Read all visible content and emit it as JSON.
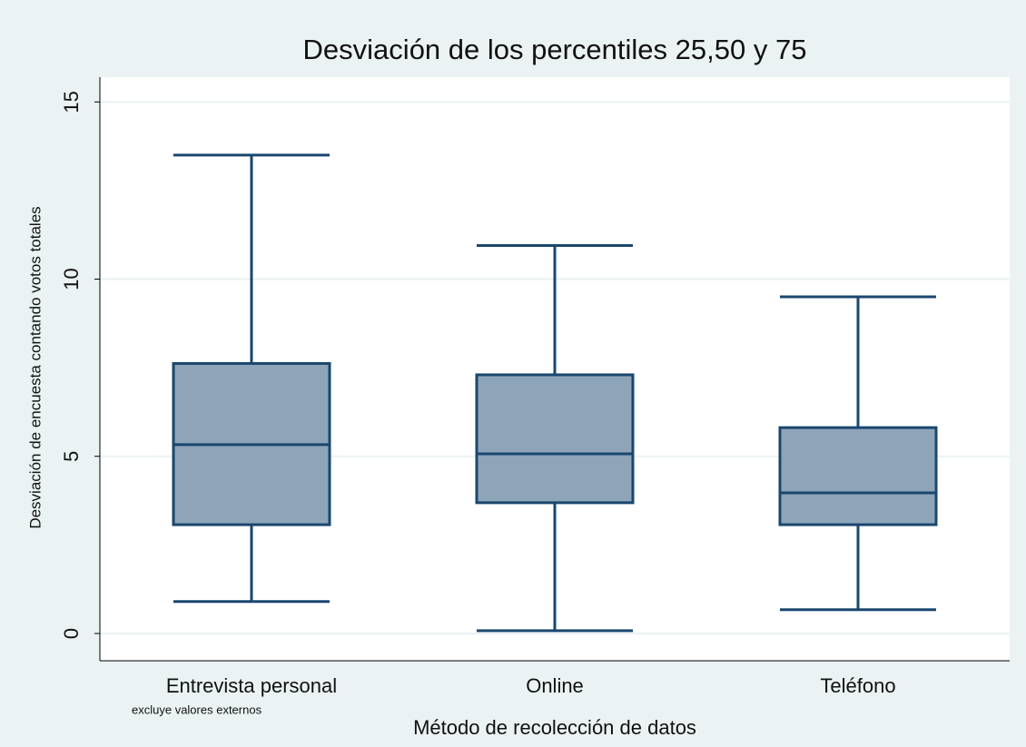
{
  "chart_data": {
    "type": "box",
    "title": "Desviación de los percentiles 25,50 y 75",
    "y_label": "Desviación de encuesta contando votos totales",
    "x_label": "Método de recolección de datos",
    "note": "excluye valores externos",
    "categories": [
      "Entrevista personal",
      "Online",
      "Teléfono"
    ],
    "boxes": [
      {
        "min": 0.9,
        "q1": 3.07,
        "median": 5.33,
        "q3": 7.62,
        "max": 13.5
      },
      {
        "min": 0.08,
        "q1": 3.69,
        "median": 5.07,
        "q3": 7.3,
        "max": 10.95
      },
      {
        "min": 0.67,
        "q1": 3.07,
        "median": 3.97,
        "q3": 5.81,
        "max": 9.5
      }
    ],
    "color": "#8ea4b8",
    "edge_color": "#1a476f",
    "ylim": [
      -0.77,
      15.7
    ],
    "yticks": [
      0,
      5,
      10,
      15
    ],
    "grid": true
  }
}
